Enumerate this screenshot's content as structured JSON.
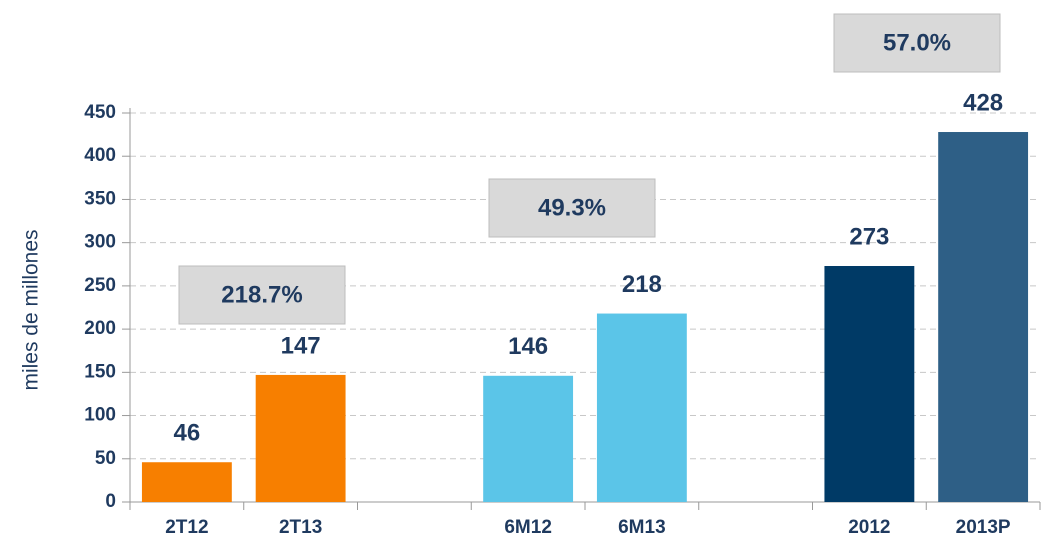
{
  "chart_data": {
    "type": "bar",
    "y_axis_label": "miles de millones",
    "categories": [
      "2T12",
      "2T13",
      null,
      "6M12",
      "6M13",
      null,
      "2012",
      "2013P"
    ],
    "values": [
      46,
      147,
      null,
      146,
      218,
      null,
      273,
      428
    ],
    "colors": [
      "#f77f00",
      "#f77f00",
      null,
      "#5bc5e8",
      "#5bc5e8",
      null,
      "#003a66",
      "#2e5f86"
    ],
    "ylim": [
      0,
      450
    ],
    "yticks": [
      0,
      50,
      100,
      150,
      200,
      250,
      300,
      350,
      400,
      450
    ],
    "grid": true,
    "annotations": [
      {
        "text": "218.7%"
      },
      {
        "text": "49.3%"
      },
      {
        "text": "57.0%"
      }
    ]
  }
}
